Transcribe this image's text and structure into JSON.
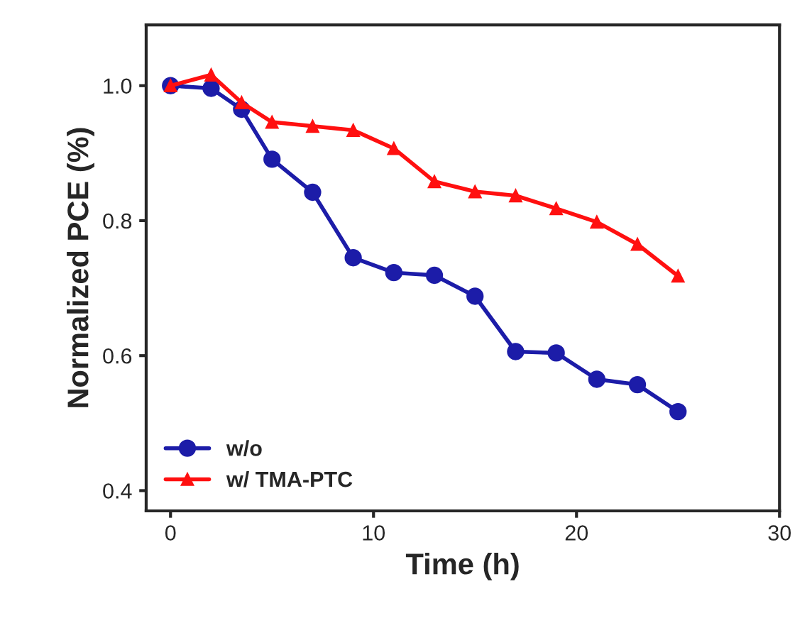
{
  "chart_data": {
    "type": "line",
    "xlabel": "Time (h)",
    "ylabel": "Normalized PCE (%)",
    "x": [
      0,
      2,
      3.5,
      5,
      7,
      9,
      11,
      13,
      15,
      17,
      19,
      21,
      23,
      25
    ],
    "series": [
      {
        "name": "w/o",
        "color": "#1c1ca8",
        "marker": "circle",
        "values": [
          1.0,
          0.996,
          0.965,
          0.891,
          0.842,
          0.745,
          0.723,
          0.719,
          0.688,
          0.606,
          0.604,
          0.565,
          0.557,
          0.517
        ]
      },
      {
        "name": "w/ TMA-PTC",
        "color": "#ff1010",
        "marker": "triangle",
        "values": [
          1.0,
          1.016,
          0.975,
          0.946,
          0.94,
          0.934,
          0.907,
          0.858,
          0.843,
          0.837,
          0.818,
          0.798,
          0.765,
          0.718
        ]
      }
    ],
    "xlim": [
      -1.2,
      30
    ],
    "xticks": [
      0,
      10,
      20,
      30
    ],
    "ylim": [
      0.37,
      1.09
    ],
    "yticks": [
      {
        "value": 0.4,
        "label": "0.4"
      },
      {
        "value": 0.6,
        "label": "0.6"
      },
      {
        "value": 0.8,
        "label": "0.8"
      },
      {
        "value": 1.0,
        "label": "1.0"
      }
    ],
    "legend": "bottom left",
    "grid": false,
    "line_style": "solid"
  }
}
